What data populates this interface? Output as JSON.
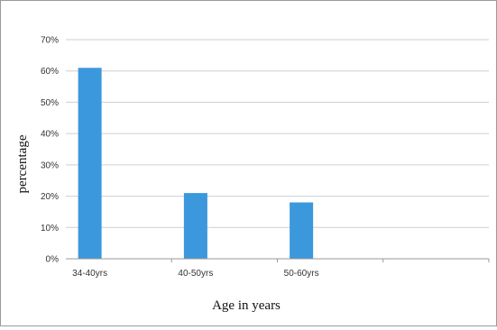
{
  "chart_data": {
    "type": "bar",
    "categories": [
      "34-40yrs",
      "40-50yrs",
      "50-60yrs",
      ""
    ],
    "values": [
      61,
      21,
      18,
      null
    ],
    "ytick_labels": [
      "0%",
      "10%",
      "20%",
      "30%",
      "40%",
      "50%",
      "60%",
      "70%"
    ],
    "yticks": [
      0,
      10,
      20,
      30,
      40,
      50,
      60,
      70
    ],
    "ylim": [
      0,
      70
    ],
    "xlabel": "Age in years",
    "ylabel": "percentage",
    "grid": true,
    "legend": "none",
    "colors": {
      "bar": "#3b98dc",
      "grid": "#cfcfcf",
      "axis": "#999999",
      "frame": "#9a9a9a"
    }
  }
}
